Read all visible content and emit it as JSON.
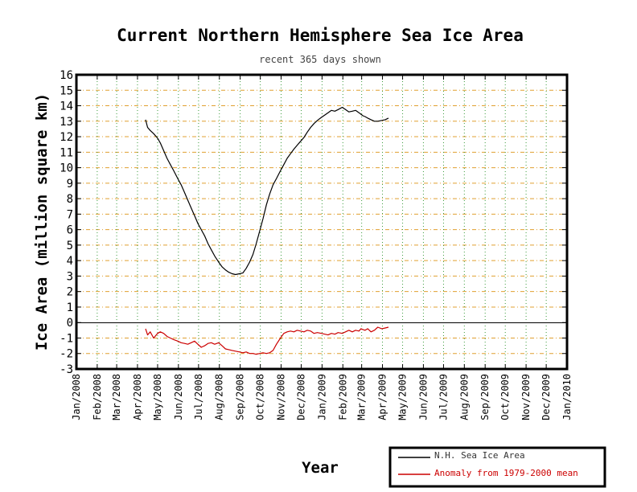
{
  "chart_data": {
    "type": "line",
    "title": "Current Northern Hemisphere Sea Ice Area",
    "subtitle": "recent 365 days shown",
    "xlabel": "Year",
    "ylabel": "Ice Area (million square km)",
    "ylim": [
      -3,
      16
    ],
    "xlim": [
      "Jan/2008",
      "Jan/2010"
    ],
    "grid": true,
    "legend_position": "bottom-right",
    "y_ticks": [
      "16",
      "15",
      "14",
      "13",
      "12",
      "11",
      "10",
      "9",
      "8",
      "7",
      "6",
      "5",
      "4",
      "3",
      "2",
      "1",
      "0",
      "-1",
      "-2",
      "-3"
    ],
    "x_ticks": [
      "Jan/2008",
      "Feb/2008",
      "Mar/2008",
      "Apr/2008",
      "May/2008",
      "Jun/2008",
      "Jul/2008",
      "Aug/2008",
      "Sep/2008",
      "Oct/2008",
      "Nov/2008",
      "Dec/2008",
      "Jan/2009",
      "Feb/2009",
      "Mar/2009",
      "Apr/2009",
      "May/2009",
      "Jun/2009",
      "Jul/2009",
      "Aug/2009",
      "Sep/2009",
      "Oct/2009",
      "Nov/2009",
      "Dec/2009",
      "Jan/2010"
    ],
    "series": [
      {
        "name": "N.H. Sea Ice Area",
        "color": "#000000",
        "x": [
          "2008-04-13",
          "2008-04-16",
          "2008-04-20",
          "2008-04-25",
          "2008-05-01",
          "2008-05-05",
          "2008-05-10",
          "2008-05-15",
          "2008-05-20",
          "2008-05-25",
          "2008-05-31",
          "2008-06-05",
          "2008-06-10",
          "2008-06-15",
          "2008-06-20",
          "2008-06-25",
          "2008-06-30",
          "2008-07-05",
          "2008-07-10",
          "2008-07-15",
          "2008-07-20",
          "2008-07-25",
          "2008-07-31",
          "2008-08-05",
          "2008-08-10",
          "2008-08-15",
          "2008-08-20",
          "2008-08-25",
          "2008-08-31",
          "2008-09-05",
          "2008-09-10",
          "2008-09-15",
          "2008-09-20",
          "2008-09-25",
          "2008-09-30",
          "2008-10-05",
          "2008-10-10",
          "2008-10-15",
          "2008-10-20",
          "2008-10-25",
          "2008-10-31",
          "2008-11-05",
          "2008-11-10",
          "2008-11-15",
          "2008-11-20",
          "2008-11-25",
          "2008-11-30",
          "2008-12-05",
          "2008-12-10",
          "2008-12-15",
          "2008-12-20",
          "2008-12-25",
          "2008-12-31",
          "2009-01-05",
          "2009-01-10",
          "2009-01-15",
          "2009-01-20",
          "2009-01-25",
          "2009-01-31",
          "2009-02-05",
          "2009-02-10",
          "2009-02-15",
          "2009-02-20",
          "2009-02-25",
          "2009-02-28",
          "2009-03-03",
          "2009-03-06",
          "2009-03-10",
          "2009-03-15",
          "2009-03-20",
          "2009-03-25",
          "2009-03-31",
          "2009-04-05",
          "2009-04-10"
        ],
        "values": [
          13.1,
          12.6,
          12.4,
          12.2,
          11.9,
          11.6,
          11.1,
          10.6,
          10.2,
          9.8,
          9.3,
          8.9,
          8.4,
          7.9,
          7.4,
          6.9,
          6.4,
          6.0,
          5.6,
          5.1,
          4.7,
          4.3,
          3.9,
          3.6,
          3.4,
          3.25,
          3.15,
          3.1,
          3.15,
          3.2,
          3.5,
          3.9,
          4.4,
          5.1,
          5.9,
          6.7,
          7.6,
          8.3,
          8.9,
          9.3,
          9.8,
          10.2,
          10.6,
          10.9,
          11.2,
          11.45,
          11.7,
          11.95,
          12.3,
          12.6,
          12.85,
          13.05,
          13.25,
          13.4,
          13.55,
          13.7,
          13.65,
          13.75,
          13.9,
          13.75,
          13.6,
          13.65,
          13.7,
          13.55,
          13.45,
          13.35,
          13.3,
          13.2,
          13.1,
          13.0,
          13.0,
          13.05,
          13.1,
          13.2
        ]
      },
      {
        "name": "Anomaly from 1979-2000 mean",
        "color": "#cc0000",
        "x": [
          "2008-04-13",
          "2008-04-16",
          "2008-04-20",
          "2008-04-25",
          "2008-05-01",
          "2008-05-05",
          "2008-05-10",
          "2008-05-15",
          "2008-05-20",
          "2008-05-25",
          "2008-05-31",
          "2008-06-05",
          "2008-06-10",
          "2008-06-15",
          "2008-06-20",
          "2008-06-25",
          "2008-06-30",
          "2008-07-05",
          "2008-07-10",
          "2008-07-15",
          "2008-07-20",
          "2008-07-25",
          "2008-07-31",
          "2008-08-05",
          "2008-08-10",
          "2008-08-15",
          "2008-08-20",
          "2008-08-25",
          "2008-08-31",
          "2008-09-05",
          "2008-09-10",
          "2008-09-15",
          "2008-09-20",
          "2008-09-25",
          "2008-09-30",
          "2008-10-05",
          "2008-10-10",
          "2008-10-15",
          "2008-10-20",
          "2008-10-25",
          "2008-10-31",
          "2008-11-05",
          "2008-11-10",
          "2008-11-15",
          "2008-11-20",
          "2008-11-25",
          "2008-11-30",
          "2008-12-05",
          "2008-12-10",
          "2008-12-15",
          "2008-12-20",
          "2008-12-25",
          "2008-12-31",
          "2009-01-05",
          "2009-01-10",
          "2009-01-15",
          "2009-01-20",
          "2009-01-25",
          "2009-01-31",
          "2009-02-05",
          "2009-02-10",
          "2009-02-15",
          "2009-02-20",
          "2009-02-25",
          "2009-02-28",
          "2009-03-03",
          "2009-03-06",
          "2009-03-10",
          "2009-03-15",
          "2009-03-20",
          "2009-03-25",
          "2009-03-31",
          "2009-04-05",
          "2009-04-10"
        ],
        "values": [
          -0.4,
          -0.8,
          -0.6,
          -1.0,
          -0.7,
          -0.6,
          -0.7,
          -0.9,
          -1.0,
          -1.1,
          -1.2,
          -1.3,
          -1.35,
          -1.4,
          -1.3,
          -1.2,
          -1.4,
          -1.6,
          -1.5,
          -1.35,
          -1.3,
          -1.4,
          -1.3,
          -1.5,
          -1.7,
          -1.75,
          -1.8,
          -1.85,
          -1.9,
          -1.95,
          -1.9,
          -2.0,
          -2.0,
          -2.05,
          -2.0,
          -1.95,
          -2.0,
          -1.95,
          -1.8,
          -1.4,
          -1.0,
          -0.7,
          -0.6,
          -0.55,
          -0.6,
          -0.5,
          -0.55,
          -0.6,
          -0.5,
          -0.55,
          -0.7,
          -0.65,
          -0.7,
          -0.75,
          -0.8,
          -0.7,
          -0.75,
          -0.65,
          -0.7,
          -0.6,
          -0.5,
          -0.6,
          -0.5,
          -0.55,
          -0.4,
          -0.45,
          -0.5,
          -0.4,
          -0.6,
          -0.5,
          -0.3,
          -0.4,
          -0.35,
          -0.3
        ]
      }
    ]
  }
}
